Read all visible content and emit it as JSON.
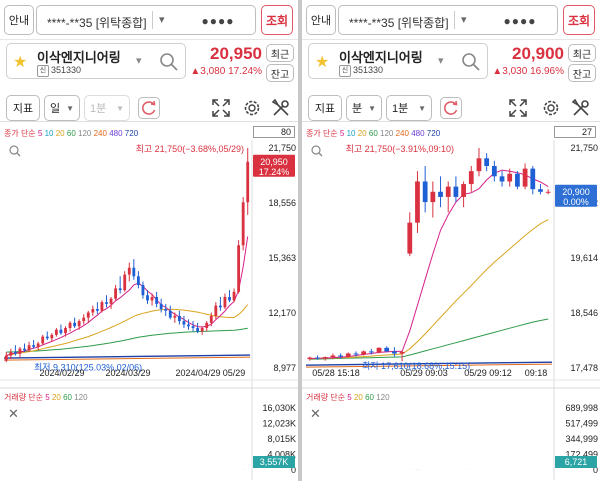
{
  "colors": {
    "up": "#d9313f",
    "down": "#1f5fd6",
    "accent": "#d9313f",
    "vol_badge": "#2aa4a4",
    "price_badge": "#2d6fd4"
  },
  "icons": [
    "star-icon",
    "search-icon",
    "refresh-icon",
    "expand-icon",
    "gear-icon",
    "tools-icon",
    "magnifier-icon",
    "close-icon",
    "stock-badge-icon"
  ],
  "panels": [
    {
      "header": {
        "guide_button": "안내",
        "account_number": "****-**35 [위탁종합]",
        "password_mask": "●●●●",
        "query_button": "조회"
      },
      "stock": {
        "name": "이삭엔지니어링",
        "code": "351330",
        "badge": "신",
        "price": "20,950",
        "change": "▲3,080  17.24%",
        "recent_button": "최근",
        "balance_button": "잔고"
      },
      "toolbar": {
        "indicator_button": "지표",
        "period_select": "일",
        "interval_select": "1분"
      },
      "ma_legend": {
        "label": "종가 단순",
        "periods": [
          "5",
          "10",
          "20",
          "60",
          "120",
          "240",
          "480",
          "720"
        ]
      },
      "period_box": "80",
      "annotations": {
        "high": "최고 21,750(−3.68%,05/29)",
        "low": "최저 9,310(125.03%,02/06)"
      },
      "price_badge": {
        "price": "20,950",
        "pct": "17.24%"
      },
      "y_ticks": [
        "21,750",
        "18,556",
        "15,363",
        "12,170",
        "8,977"
      ],
      "x_ticks": [
        "2024/02/29",
        "2024/03/29",
        "2024/04/29",
        "05/29"
      ],
      "volume_legend": {
        "label": "거래량 단순",
        "periods": [
          "5",
          "20",
          "60",
          "120"
        ]
      },
      "volume_ticks": [
        "16,030K",
        "12,023K",
        "8,015K",
        "4,008K",
        "0"
      ],
      "volume_badge": "3,557K",
      "chart_data": {
        "type": "candlestick",
        "ylim": [
          8977,
          21750
        ],
        "candles": [
          {
            "o": 9400,
            "h": 9900,
            "l": 9310,
            "c": 9700
          },
          {
            "o": 9700,
            "h": 10100,
            "l": 9500,
            "c": 9900
          },
          {
            "o": 9900,
            "h": 10300,
            "l": 9700,
            "c": 9800
          },
          {
            "o": 9800,
            "h": 10200,
            "l": 9600,
            "c": 10100
          },
          {
            "o": 10100,
            "h": 10400,
            "l": 9900,
            "c": 10000
          },
          {
            "o": 10000,
            "h": 10500,
            "l": 9900,
            "c": 10300
          },
          {
            "o": 10300,
            "h": 10600,
            "l": 10100,
            "c": 10200
          },
          {
            "o": 10200,
            "h": 10500,
            "l": 10000,
            "c": 10400
          },
          {
            "o": 10400,
            "h": 10900,
            "l": 10300,
            "c": 10800
          },
          {
            "o": 10800,
            "h": 11100,
            "l": 10600,
            "c": 10700
          },
          {
            "o": 10700,
            "h": 11000,
            "l": 10500,
            "c": 10900
          },
          {
            "o": 10900,
            "h": 11300,
            "l": 10800,
            "c": 11200
          },
          {
            "o": 11200,
            "h": 11500,
            "l": 10900,
            "c": 11000
          },
          {
            "o": 11000,
            "h": 11400,
            "l": 10800,
            "c": 11300
          },
          {
            "o": 11300,
            "h": 11700,
            "l": 11100,
            "c": 11600
          },
          {
            "o": 11600,
            "h": 11900,
            "l": 11300,
            "c": 11400
          },
          {
            "o": 11400,
            "h": 11800,
            "l": 11200,
            "c": 11700
          },
          {
            "o": 11700,
            "h": 12100,
            "l": 11500,
            "c": 11900
          },
          {
            "o": 11900,
            "h": 12300,
            "l": 11600,
            "c": 12200
          },
          {
            "o": 12200,
            "h": 12600,
            "l": 12000,
            "c": 12400
          },
          {
            "o": 12400,
            "h": 12800,
            "l": 12100,
            "c": 12300
          },
          {
            "o": 12300,
            "h": 12900,
            "l": 12200,
            "c": 12800
          },
          {
            "o": 12800,
            "h": 13200,
            "l": 12500,
            "c": 12700
          },
          {
            "o": 12700,
            "h": 13100,
            "l": 12400,
            "c": 13000
          },
          {
            "o": 13000,
            "h": 13800,
            "l": 12900,
            "c": 13600
          },
          {
            "o": 13600,
            "h": 14300,
            "l": 13300,
            "c": 13500
          },
          {
            "o": 13500,
            "h": 14600,
            "l": 13400,
            "c": 14400
          },
          {
            "o": 14400,
            "h": 15100,
            "l": 14000,
            "c": 14800
          },
          {
            "o": 14800,
            "h": 15300,
            "l": 14100,
            "c": 14300
          },
          {
            "o": 14300,
            "h": 14600,
            "l": 13600,
            "c": 13800
          },
          {
            "o": 13800,
            "h": 14000,
            "l": 13000,
            "c": 13200
          },
          {
            "o": 13200,
            "h": 13500,
            "l": 12700,
            "c": 12900
          },
          {
            "o": 12900,
            "h": 13300,
            "l": 12600,
            "c": 13100
          },
          {
            "o": 13100,
            "h": 13400,
            "l": 12500,
            "c": 12700
          },
          {
            "o": 12700,
            "h": 13000,
            "l": 12200,
            "c": 12400
          },
          {
            "o": 12400,
            "h": 12700,
            "l": 12000,
            "c": 12300
          },
          {
            "o": 12300,
            "h": 12600,
            "l": 11800,
            "c": 11900
          },
          {
            "o": 11900,
            "h": 12200,
            "l": 11600,
            "c": 12000
          },
          {
            "o": 12000,
            "h": 12300,
            "l": 11500,
            "c": 11700
          },
          {
            "o": 11700,
            "h": 12000,
            "l": 11300,
            "c": 11500
          },
          {
            "o": 11500,
            "h": 11800,
            "l": 11200,
            "c": 11400
          },
          {
            "o": 11400,
            "h": 11700,
            "l": 11100,
            "c": 11300
          },
          {
            "o": 11300,
            "h": 11600,
            "l": 11000,
            "c": 11100
          },
          {
            "o": 11100,
            "h": 11400,
            "l": 10900,
            "c": 11300
          },
          {
            "o": 11300,
            "h": 11700,
            "l": 11100,
            "c": 11600
          },
          {
            "o": 11600,
            "h": 12200,
            "l": 11400,
            "c": 12000
          },
          {
            "o": 12000,
            "h": 12800,
            "l": 11800,
            "c": 12600
          },
          {
            "o": 12600,
            "h": 13100,
            "l": 12300,
            "c": 12500
          },
          {
            "o": 12500,
            "h": 13300,
            "l": 12400,
            "c": 13100
          },
          {
            "o": 13100,
            "h": 13500,
            "l": 12800,
            "c": 12900
          },
          {
            "o": 12900,
            "h": 13600,
            "l": 12800,
            "c": 13400
          },
          {
            "o": 13400,
            "h": 16400,
            "l": 13300,
            "c": 16100
          },
          {
            "o": 16100,
            "h": 18900,
            "l": 15800,
            "c": 18600
          },
          {
            "o": 18600,
            "h": 21750,
            "l": 17870,
            "c": 20950
          }
        ],
        "volume": [
          1.1,
          0.8,
          0.9,
          0.7,
          0.8,
          0.9,
          0.6,
          0.8,
          1.6,
          0.9,
          0.8,
          1.2,
          0.9,
          0.8,
          1.5,
          0.9,
          0.8,
          1.0,
          1.3,
          1.1,
          0.9,
          1.8,
          0.9,
          1.0,
          3.2,
          1.5,
          4.6,
          3.9,
          2.1,
          1.4,
          1.0,
          0.9,
          1.1,
          0.8,
          0.9,
          0.7,
          0.8,
          0.7,
          0.6,
          0.7,
          0.6,
          0.7,
          0.6,
          0.7,
          0.8,
          1.2,
          2.0,
          1.1,
          1.6,
          1.0,
          1.4,
          8.3,
          15.8,
          3.6
        ],
        "ma5": [
          9700,
          9800,
          9850,
          9900,
          9950,
          10060,
          10120,
          10200,
          10320,
          10420,
          10520,
          10640,
          10740,
          10880,
          11000,
          11160,
          11280,
          11440,
          11620,
          11840,
          12040,
          12280,
          12420,
          12620,
          12880,
          13060,
          13280,
          13500,
          13800,
          13900,
          13720,
          13440,
          13240,
          12940,
          12640,
          12500,
          12280,
          12100,
          11940,
          11800,
          11620,
          11480,
          11380,
          11360,
          11400,
          11520,
          11780,
          12020,
          12280,
          12600,
          12840,
          13480,
          14860,
          16620
        ],
        "ma20": [
          9700,
          9750,
          9800,
          9850,
          9880,
          9930,
          9980,
          10030,
          10100,
          10160,
          10220,
          10280,
          10340,
          10400,
          10480,
          10560,
          10640,
          10720,
          10800,
          10900,
          11000,
          11110,
          11220,
          11330,
          11450,
          11570,
          11700,
          11840,
          11980,
          12080,
          12150,
          12210,
          12280,
          12330,
          12360,
          12380,
          12390,
          12380,
          12360,
          12340,
          12300,
          12260,
          12220,
          12160,
          12100,
          12040,
          11990,
          11950,
          11920,
          11910,
          11910,
          12080,
          12340,
          12660
        ],
        "ma60": [
          9900,
          9910,
          9920,
          9930,
          9940,
          9950,
          9960,
          9970,
          9990,
          10010,
          10030,
          10050,
          10070,
          10090,
          10120,
          10150,
          10180,
          10210,
          10240,
          10280,
          10320,
          10360,
          10400,
          10440,
          10490,
          10540,
          10590,
          10650,
          10710,
          10760,
          10800,
          10840,
          10880,
          10910,
          10940,
          10970,
          10990,
          11010,
          11030,
          11050,
          11070,
          11080,
          11090,
          11100,
          11110,
          11120,
          11130,
          11140,
          11150,
          11160,
          11170,
          11200,
          11240,
          11290
        ]
      }
    },
    {
      "header": {
        "guide_button": "안내",
        "account_number": "****-**35 [위탁종합]",
        "password_mask": "●●●●",
        "query_button": "조회"
      },
      "stock": {
        "name": "이삭엔지니어링",
        "code": "351330",
        "badge": "신",
        "price": "20,900",
        "change": "▲3,030  16.96%",
        "recent_button": "최근",
        "balance_button": "잔고"
      },
      "toolbar": {
        "indicator_button": "지표",
        "period_select": "분",
        "interval_select": "1분"
      },
      "ma_legend": {
        "label": "종가 단순",
        "periods": [
          "5",
          "10",
          "20",
          "60",
          "120",
          "240",
          "480",
          "720"
        ]
      },
      "period_box": "27",
      "annotations": {
        "high": "최고 21,750(−3.91%,09:10)",
        "low": "최저 17,610(18.68%,15:15)"
      },
      "price_badge": {
        "price": "20,900",
        "pct": "0.00%"
      },
      "y_ticks": [
        "21,750",
        "20,682",
        "19,614",
        "18,546",
        "17,478"
      ],
      "x_ticks": [
        "05/28 15:18",
        "05/29 09:03",
        "05/29 09:12",
        "09:18"
      ],
      "volume_legend": {
        "label": "거래량 단순",
        "periods": [
          "5",
          "20",
          "60",
          "120"
        ]
      },
      "volume_ticks": [
        "689,998",
        "517,499",
        "344,999",
        "172,499",
        "0"
      ],
      "volume_badge": "6,721",
      "chart_data": {
        "type": "candlestick",
        "ylim": [
          17478,
          21750
        ],
        "candles": [
          {
            "o": 17650,
            "h": 17700,
            "l": 17620,
            "c": 17680
          },
          {
            "o": 17680,
            "h": 17720,
            "l": 17640,
            "c": 17660
          },
          {
            "o": 17660,
            "h": 17700,
            "l": 17620,
            "c": 17690
          },
          {
            "o": 17690,
            "h": 17760,
            "l": 17650,
            "c": 17720
          },
          {
            "o": 17720,
            "h": 17760,
            "l": 17660,
            "c": 17700
          },
          {
            "o": 17700,
            "h": 17780,
            "l": 17680,
            "c": 17760
          },
          {
            "o": 17760,
            "h": 17800,
            "l": 17700,
            "c": 17740
          },
          {
            "o": 17740,
            "h": 17820,
            "l": 17720,
            "c": 17800
          },
          {
            "o": 17800,
            "h": 17850,
            "l": 17740,
            "c": 17780
          },
          {
            "o": 17780,
            "h": 17880,
            "l": 17760,
            "c": 17870
          },
          {
            "o": 17870,
            "h": 17900,
            "l": 17780,
            "c": 17800
          },
          {
            "o": 17800,
            "h": 17880,
            "l": 17700,
            "c": 17760
          },
          {
            "o": 17760,
            "h": 17820,
            "l": 17610,
            "c": 17790
          },
          {
            "o": 19700,
            "h": 20500,
            "l": 19650,
            "c": 20300
          },
          {
            "o": 20300,
            "h": 21300,
            "l": 20100,
            "c": 21100
          },
          {
            "o": 21100,
            "h": 21400,
            "l": 20500,
            "c": 20700
          },
          {
            "o": 20700,
            "h": 21100,
            "l": 20400,
            "c": 20900
          },
          {
            "o": 20900,
            "h": 21200,
            "l": 20600,
            "c": 20800
          },
          {
            "o": 20800,
            "h": 21100,
            "l": 20500,
            "c": 21000
          },
          {
            "o": 21000,
            "h": 21200,
            "l": 20700,
            "c": 20800
          },
          {
            "o": 20800,
            "h": 21100,
            "l": 20600,
            "c": 21050
          },
          {
            "o": 21050,
            "h": 21400,
            "l": 20900,
            "c": 21300
          },
          {
            "o": 21300,
            "h": 21750,
            "l": 21200,
            "c": 21550
          },
          {
            "o": 21550,
            "h": 21650,
            "l": 21300,
            "c": 21400
          },
          {
            "o": 21400,
            "h": 21500,
            "l": 21100,
            "c": 21200
          },
          {
            "o": 21200,
            "h": 21300,
            "l": 21000,
            "c": 21100
          },
          {
            "o": 21100,
            "h": 21350,
            "l": 21000,
            "c": 21250
          },
          {
            "o": 21250,
            "h": 21300,
            "l": 20950,
            "c": 21000
          },
          {
            "o": 21000,
            "h": 21450,
            "l": 20950,
            "c": 21350
          },
          {
            "o": 21350,
            "h": 21400,
            "l": 20850,
            "c": 20950
          },
          {
            "o": 20950,
            "h": 21050,
            "l": 20850,
            "c": 20900
          },
          {
            "o": 20900,
            "h": 20950,
            "l": 20850,
            "c": 20900
          }
        ],
        "volume": [
          15,
          10,
          12,
          9,
          14,
          11,
          13,
          10,
          12,
          9,
          11,
          16,
          14,
          210,
          690,
          240,
          110,
          180,
          230,
          130,
          310,
          260,
          140,
          90,
          170,
          120,
          110,
          70,
          60,
          40,
          30,
          7
        ],
        "ma5": [
          17660,
          17670,
          17670,
          17680,
          17690,
          17700,
          17720,
          17740,
          17760,
          17780,
          17790,
          17800,
          17800,
          18200,
          18700,
          19200,
          19690,
          20150,
          20450,
          20700,
          20850,
          20880,
          20960,
          21130,
          21260,
          21320,
          21300,
          21270,
          21230,
          21150,
          21090,
          21000
        ],
        "ma20": [
          17660,
          17660,
          17670,
          17670,
          17680,
          17680,
          17690,
          17700,
          17710,
          17720,
          17730,
          17740,
          17750,
          17850,
          17990,
          18140,
          18300,
          18460,
          18620,
          18780,
          18930,
          19080,
          19240,
          19390,
          19530,
          19660,
          19790,
          19920,
          20050,
          20170,
          20280,
          20360
        ],
        "ma60": [
          17650,
          17650,
          17655,
          17660,
          17665,
          17670,
          17672,
          17675,
          17678,
          17682,
          17686,
          17690,
          17694,
          17730,
          17770,
          17810,
          17850,
          17890,
          17930,
          17970,
          18010,
          18050,
          18090,
          18130,
          18170,
          18210,
          18250,
          18290,
          18330,
          18370,
          18400,
          18430
        ]
      }
    }
  ]
}
